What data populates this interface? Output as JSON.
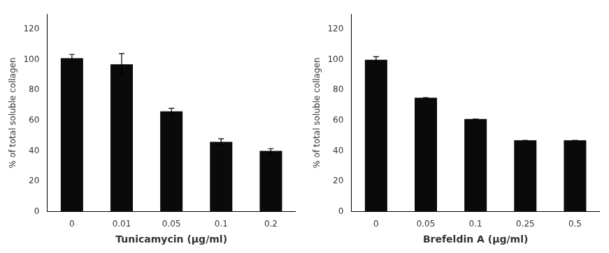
{
  "chart_data": [
    {
      "type": "bar",
      "categories": [
        "0",
        "0.01",
        "0.05",
        "0.1",
        "0.2"
      ],
      "values": [
        101,
        97,
        66,
        46,
        40
      ],
      "errors": [
        2.5,
        7,
        2,
        2,
        1.5
      ],
      "xlabel": "Tunicamycin (μg/ml)",
      "ylabel": "% of total soluble collagen",
      "ylim": [
        0,
        130
      ],
      "yticks": [
        0,
        20,
        40,
        60,
        80,
        100,
        120
      ],
      "color": "#0a0a0a",
      "grid": false
    },
    {
      "type": "bar",
      "categories": [
        "0",
        "0.05",
        "0.1",
        "0.25",
        "0.5"
      ],
      "values": [
        100,
        75,
        61,
        47,
        47
      ],
      "errors": [
        2,
        0,
        0,
        0,
        0
      ],
      "xlabel": "Brefeldin A (μg/ml)",
      "ylabel": "% of total soluble collagen",
      "ylim": [
        0,
        130
      ],
      "yticks": [
        0,
        20,
        40,
        60,
        80,
        100,
        120
      ],
      "color": "#0a0a0a",
      "grid": false
    }
  ]
}
